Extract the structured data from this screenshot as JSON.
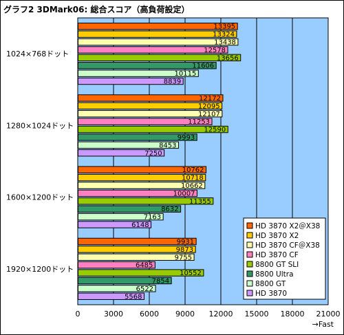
{
  "chart_data": {
    "type": "bar",
    "orientation": "horizontal",
    "title": "グラフ2 3DMark06: 総合スコア（高負荷設定）",
    "categories": [
      "1024×768ドット",
      "1280×1024ドット",
      "1600×1200ドット",
      "1920×1200ドット"
    ],
    "series": [
      {
        "name": "HD 3870 X2＠X38",
        "color": "#ff6600",
        "values": [
          13395,
          12172,
          10762,
          9931
        ]
      },
      {
        "name": "HD 3870 X2",
        "color": "#ffcc00",
        "values": [
          13324,
          12095,
          10718,
          9873
        ]
      },
      {
        "name": "HD 3870 CF＠X38",
        "color": "#ffffb0",
        "values": [
          13438,
          12107,
          10662,
          9755
        ]
      },
      {
        "name": "HD 3870 CF",
        "color": "#ff80c0",
        "values": [
          12578,
          11253,
          10007,
          6485
        ]
      },
      {
        "name": "8800 GT SLI",
        "color": "#99cc00",
        "values": [
          13656,
          12590,
          11355,
          10552
        ]
      },
      {
        "name": "8800 Ultra",
        "color": "#339966",
        "values": [
          11606,
          9993,
          8632,
          7854
        ]
      },
      {
        "name": "8800 GT",
        "color": "#ccffcc",
        "values": [
          10115,
          8453,
          7163,
          6522
        ]
      },
      {
        "name": "HD 3870",
        "color": "#cc99ff",
        "values": [
          8839,
          7250,
          6148,
          5568
        ]
      }
    ],
    "xlim": [
      0,
      21000
    ],
    "xticks": [
      0,
      3000,
      6000,
      9000,
      12000,
      15000,
      18000,
      21000
    ],
    "xlabel": "→Fast",
    "plot_background": "#99ccff",
    "grid": true,
    "legend_position": "bottom-right"
  }
}
